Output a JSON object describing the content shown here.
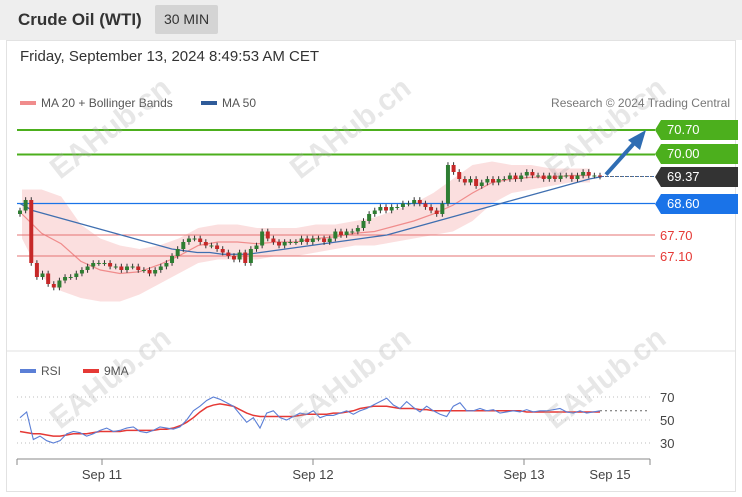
{
  "header": {
    "title": "Crude Oil (WTI)",
    "timeframe": "30 MIN"
  },
  "timestamp": "Friday, September 13, 2024 8:49:53 AM CET",
  "credit": "Research © 2024 Trading Central",
  "watermark": "EAHub.cn",
  "colors": {
    "resistance": "#4caf1d",
    "support": "#1a73e8",
    "level_line": "#e57373",
    "ma50": "#3f6fb0",
    "bollinger": "#f7c4c4",
    "candle_up": "#2e7d32",
    "candle_down": "#c62828",
    "current": "#333333",
    "rsi": "#5b7fd6",
    "rsi_ma": "#e53935",
    "arrow": "#2f6db3"
  },
  "chart_data": [
    {
      "type": "candlestick",
      "legend": [
        {
          "name": "MA 20 + Bollinger Bands",
          "color": "#f08c8c"
        },
        {
          "name": "MA 50",
          "color": "#2f5b99"
        }
      ],
      "x_ticks": [
        "Sep 11",
        "Sep 12",
        "Sep 13",
        "Sep 15"
      ],
      "ylim": [
        66.2,
        71.0
      ],
      "current_price": 69.37,
      "levels": [
        {
          "label": "70.70",
          "value": 70.7,
          "style": "tag",
          "color": "#4caf1d"
        },
        {
          "label": "70.00",
          "value": 70.0,
          "style": "tag",
          "color": "#4caf1d"
        },
        {
          "label": "69.37",
          "value": 69.37,
          "style": "tag",
          "color": "#333333"
        },
        {
          "label": "68.60",
          "value": 68.6,
          "style": "tag",
          "color": "#1a73e8"
        },
        {
          "label": "67.70",
          "value": 67.7,
          "style": "text",
          "color": "#e53935"
        },
        {
          "label": "67.10",
          "value": 67.1,
          "style": "text",
          "color": "#e53935"
        }
      ],
      "close": [
        68.4,
        68.7,
        66.9,
        66.5,
        66.6,
        66.3,
        66.2,
        66.4,
        66.5,
        66.5,
        66.6,
        66.7,
        66.8,
        66.9,
        66.9,
        66.9,
        66.8,
        66.8,
        66.7,
        66.8,
        66.8,
        66.7,
        66.7,
        66.6,
        66.7,
        66.8,
        66.9,
        67.1,
        67.3,
        67.5,
        67.6,
        67.6,
        67.5,
        67.4,
        67.4,
        67.3,
        67.2,
        67.1,
        67.0,
        67.2,
        66.9,
        67.3,
        67.4,
        67.8,
        67.6,
        67.5,
        67.4,
        67.5,
        67.5,
        67.5,
        67.6,
        67.5,
        67.6,
        67.6,
        67.5,
        67.6,
        67.8,
        67.7,
        67.8,
        67.8,
        67.9,
        68.1,
        68.3,
        68.4,
        68.5,
        68.4,
        68.5,
        68.5,
        68.6,
        68.6,
        68.7,
        68.6,
        68.5,
        68.4,
        68.3,
        68.6,
        69.7,
        69.5,
        69.3,
        69.2,
        69.3,
        69.1,
        69.2,
        69.3,
        69.2,
        69.3,
        69.3,
        69.4,
        69.3,
        69.4,
        69.5,
        69.4,
        69.4,
        69.3,
        69.4,
        69.3,
        69.4,
        69.4,
        69.3,
        69.4,
        69.5,
        69.4,
        69.4,
        69.37
      ],
      "ma50": [
        68.6,
        68.4,
        68.3,
        68.2,
        68.1,
        68.0,
        67.9,
        67.8,
        67.7,
        67.6,
        67.5,
        67.4,
        67.3,
        67.25,
        67.2,
        67.2,
        67.15,
        67.15,
        67.15,
        67.2,
        67.25,
        67.3,
        67.35,
        67.4,
        67.45,
        67.5,
        67.55,
        67.6,
        67.65,
        67.7,
        67.8,
        67.9,
        68.0,
        68.1,
        68.2,
        68.3,
        68.4,
        68.5,
        68.6,
        68.7,
        68.8,
        68.9,
        69.0,
        69.1,
        69.2,
        69.3,
        69.37
      ],
      "bollinger_upper": [
        69.0,
        69.0,
        68.8,
        68.0,
        67.6,
        67.4,
        67.3,
        67.4,
        67.6,
        67.9,
        68.0,
        68.0,
        67.9,
        67.9,
        67.9,
        68.0,
        68.0,
        68.1,
        68.2,
        68.4,
        68.6,
        68.9,
        69.3,
        69.7,
        69.8,
        69.7,
        69.7,
        69.6,
        69.6,
        69.6
      ],
      "bollinger_lower": [
        67.6,
        66.5,
        66.1,
        65.9,
        65.8,
        65.8,
        66.0,
        66.3,
        66.6,
        66.9,
        67.0,
        67.0,
        67.0,
        67.1,
        67.1,
        67.2,
        67.3,
        67.4,
        67.4,
        67.5,
        67.6,
        67.7,
        67.8,
        68.1,
        68.6,
        68.9,
        69.0,
        69.1,
        69.2,
        69.2
      ]
    },
    {
      "type": "line",
      "legend": [
        {
          "name": "RSI",
          "color": "#5b7fd6"
        },
        {
          "name": "9MA",
          "color": "#e53935"
        }
      ],
      "yticks": [
        70,
        50,
        30
      ],
      "ylim": [
        20,
        80
      ],
      "rsi": [
        52,
        57,
        33,
        36,
        32,
        30,
        32,
        38,
        40,
        39,
        36,
        38,
        41,
        43,
        40,
        41,
        43,
        44,
        40,
        39,
        41,
        44,
        43,
        42,
        44,
        50,
        58,
        62,
        67,
        70,
        68,
        65,
        62,
        55,
        48,
        52,
        43,
        56,
        58,
        52,
        50,
        53,
        56,
        55,
        58,
        52,
        54,
        54,
        56,
        58,
        55,
        58,
        60,
        63,
        66,
        69,
        63,
        60,
        66,
        61,
        57,
        62,
        58,
        55,
        53,
        62,
        65,
        58,
        58,
        60,
        58,
        59,
        56,
        57,
        58,
        57,
        59,
        57,
        58,
        58,
        59,
        60,
        57,
        56,
        58,
        56,
        57,
        58
      ],
      "rsi_ma": [
        40,
        39,
        38,
        38,
        37,
        36,
        36,
        37,
        38,
        38,
        38,
        39,
        40,
        40,
        40,
        40,
        41,
        41,
        41,
        41,
        41,
        42,
        42,
        43,
        45,
        48,
        52,
        57,
        61,
        63,
        64,
        63,
        62,
        59,
        56,
        54,
        53,
        53,
        53,
        53,
        53,
        53,
        54,
        55,
        55,
        55,
        55,
        56,
        56,
        57,
        58,
        60,
        61,
        62,
        62,
        62,
        61,
        60,
        60,
        60,
        59,
        59,
        58,
        58,
        58,
        58,
        58,
        58,
        58,
        58,
        58,
        58,
        58,
        58,
        58,
        58,
        57,
        57,
        57,
        57,
        57,
        57,
        57,
        57,
        57,
        57,
        57,
        57
      ]
    }
  ]
}
